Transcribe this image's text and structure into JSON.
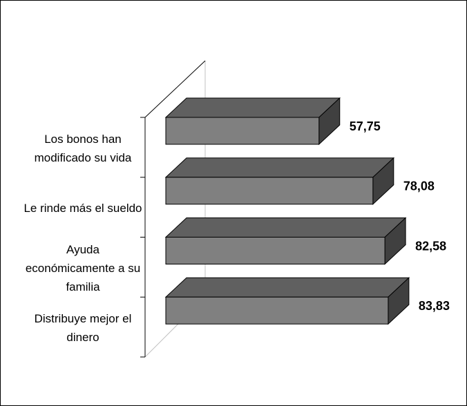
{
  "chart_data": {
    "type": "bar3d_horizontal",
    "categories": [
      "Los bonos han modificado su vida",
      "Le rinde más el sueldo",
      "Ayuda económicamente a su familia",
      "Distribuye mejor el dinero"
    ],
    "values": [
      57.75,
      78.08,
      82.58,
      83.83
    ],
    "value_labels": [
      "57,75",
      "78,08",
      "82,58",
      "83,83"
    ],
    "xlim": [
      0,
      100
    ],
    "colors": {
      "front": "#808080",
      "top": "#606060",
      "side": "#404040"
    }
  }
}
